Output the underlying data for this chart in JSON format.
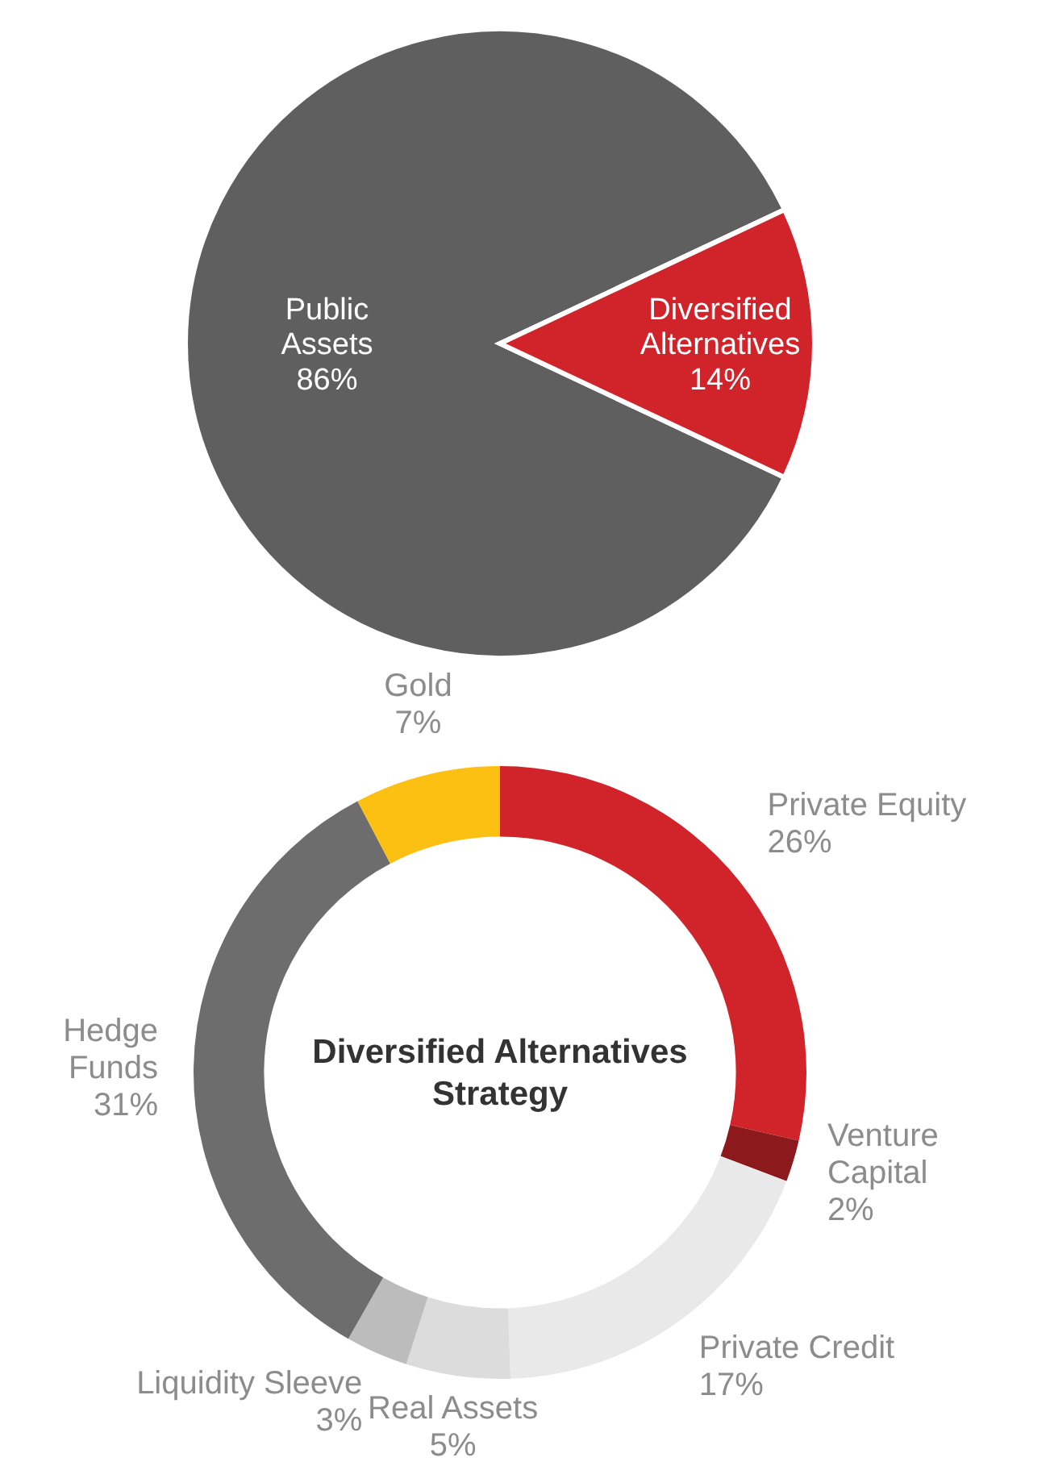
{
  "chart_data": [
    {
      "type": "pie",
      "categories": [
        "Public Assets",
        "Diversified Alternatives"
      ],
      "values": [
        86,
        14
      ],
      "colors": [
        "#5f5f60",
        "#d0232a"
      ],
      "value_labels": [
        "86%",
        "14%"
      ]
    },
    {
      "type": "donut",
      "title": "Diversified Alternatives Strategy",
      "categories": [
        "Private Equity",
        "Venture Capital",
        "Private Credit",
        "Real Assets",
        "Liquidity Sleeve",
        "Hedge Funds",
        "Gold"
      ],
      "values": [
        26,
        2,
        17,
        5,
        3,
        31,
        7
      ],
      "colors": [
        "#d0232a",
        "#8c1a1c",
        "#e9e9e9",
        "#dcdcdc",
        "#bcbcbc",
        "#6d6d6d",
        "#fcc012"
      ],
      "value_labels": [
        "26%",
        "2%",
        "17%",
        "5%",
        "3%",
        "31%",
        "7%"
      ]
    }
  ]
}
